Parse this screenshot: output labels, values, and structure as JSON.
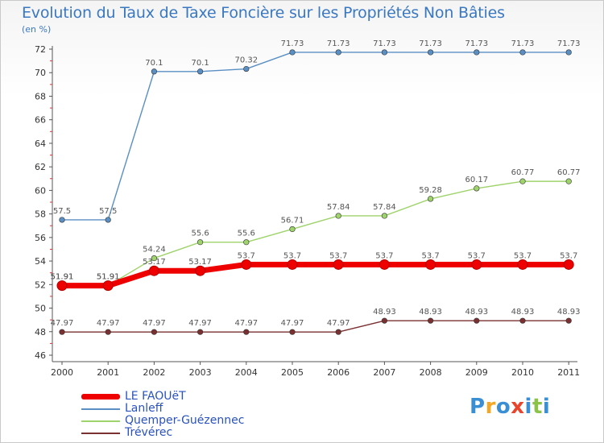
{
  "chart_data": {
    "type": "line",
    "title": "Evolution du Taux de Taxe Foncière sur les Propriétés Non Bâties",
    "subtitle": "(en %)",
    "x": [
      "2000",
      "2001",
      "2002",
      "2003",
      "2004",
      "2005",
      "2006",
      "2007",
      "2008",
      "2009",
      "2010",
      "2011"
    ],
    "ylim": [
      46,
      72
    ],
    "yticks": [
      "46",
      "48",
      "50",
      "52",
      "54",
      "56",
      "58",
      "60",
      "62",
      "64",
      "66",
      "68",
      "70",
      "72"
    ],
    "grid": false,
    "legend_position": "bottom-left",
    "series": [
      {
        "name": "Lanleff",
        "color": "#5a8fc4",
        "values": [
          57.5,
          57.5,
          70.1,
          70.1,
          70.32,
          71.73,
          71.73,
          71.73,
          71.73,
          71.73,
          71.73,
          71.73
        ],
        "labels": [
          "57.5",
          "57.5",
          "70.1",
          "70.1",
          "70.32",
          "71.73",
          "71.73",
          "71.73",
          "71.73",
          "71.73",
          "71.73",
          "71.73"
        ]
      },
      {
        "name": "Quemper-Guézennec",
        "color": "#9fd36b",
        "values": [
          51.91,
          51.91,
          54.24,
          55.6,
          55.6,
          56.71,
          57.84,
          57.84,
          59.28,
          60.17,
          60.77,
          60.77
        ],
        "labels": [
          "51.91",
          "51.91",
          "54.24",
          "55.6",
          "55.6",
          "56.71",
          "57.84",
          "57.84",
          "59.28",
          "60.17",
          "60.77",
          "60.77"
        ]
      },
      {
        "name": "Trévérec",
        "color": "#7a3030",
        "values": [
          47.97,
          47.97,
          47.97,
          47.97,
          47.97,
          47.97,
          47.97,
          48.93,
          48.93,
          48.93,
          48.93,
          48.93
        ],
        "labels": [
          "47.97",
          "47.97",
          "47.97",
          "47.97",
          "47.97",
          "47.97",
          "47.97",
          "48.93",
          "48.93",
          "48.93",
          "48.93",
          "48.93"
        ]
      },
      {
        "name": "LE FAOUëT",
        "color": "#ee0000",
        "values": [
          51.91,
          51.91,
          53.17,
          53.17,
          53.7,
          53.7,
          53.7,
          53.7,
          53.7,
          53.7,
          53.7,
          53.7
        ],
        "labels": [
          "51.91",
          "51.91",
          "53.17",
          "53.17",
          "53.7",
          "53.7",
          "53.7",
          "53.7",
          "53.7",
          "53.7",
          "53.7",
          "53.7"
        ]
      }
    ],
    "legend": [
      "LE FAOUëT",
      "Lanleff",
      "Quemper-Guézennec",
      "Trévérec"
    ]
  },
  "logo": {
    "letters": [
      "P",
      "r",
      "o",
      "x",
      "i",
      "t",
      "i"
    ],
    "colors": [
      "#3a8fd4",
      "#f5a623",
      "#3a8fd4",
      "#e8452c",
      "#3a8fd4",
      "#8bc34a",
      "#3a8fd4"
    ]
  }
}
